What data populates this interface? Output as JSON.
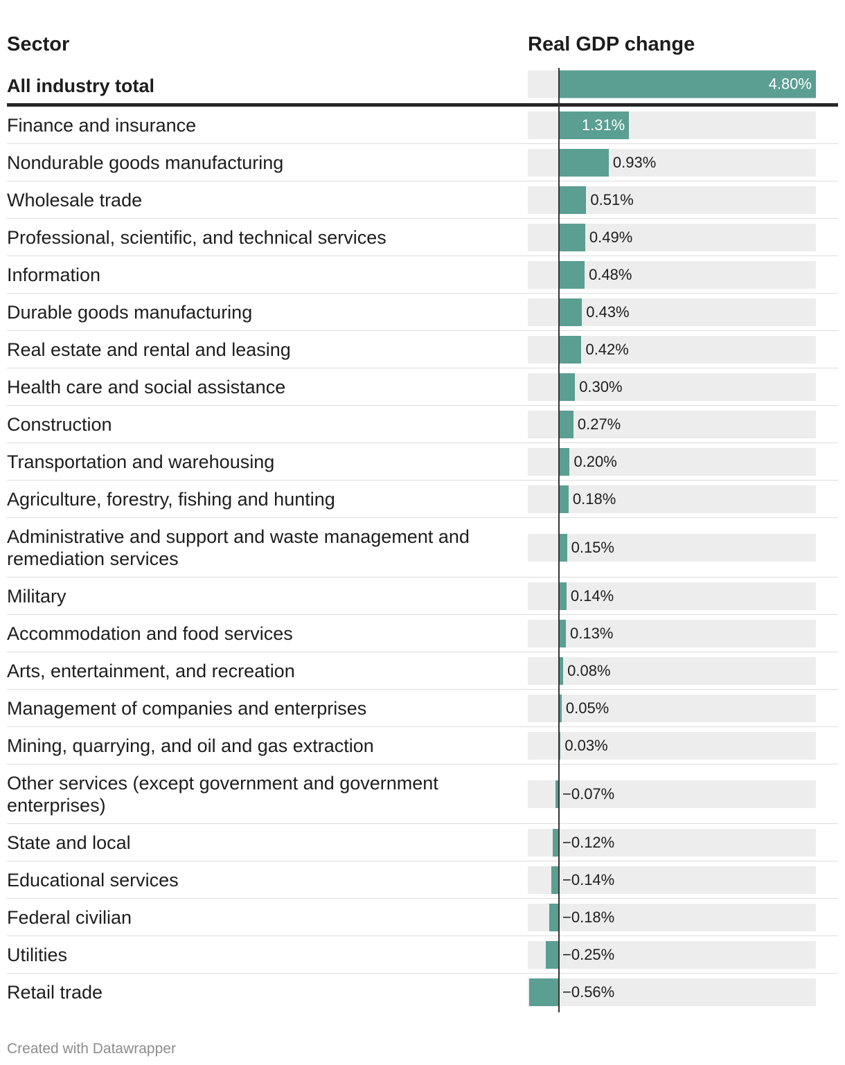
{
  "header": {
    "sector_label": "Sector",
    "value_label": "Real GDP change"
  },
  "footer": "Created with Datawrapper",
  "colors": {
    "bar": "#5b9e92",
    "track": "#ededed",
    "axis": "#333333"
  },
  "chart_data": {
    "type": "bar",
    "title": "",
    "xlabel": "Real GDP change",
    "ylabel": "Sector",
    "xlim": [
      -0.6,
      4.9
    ],
    "categories": [
      "All industry total",
      "Finance and insurance",
      "Nondurable goods manufacturing",
      "Wholesale trade",
      "Professional, scientific, and technical services",
      "Information",
      "Durable goods manufacturing",
      "Real estate and rental and leasing",
      "Health care and social assistance",
      "Construction",
      "Transportation and warehousing",
      "Agriculture, forestry, fishing and hunting",
      "Administrative and support and waste management and remediation services",
      "Military",
      "Accommodation and food services",
      "Arts, entertainment, and recreation",
      "Management of companies and enterprises",
      "Mining, quarrying, and oil and gas extraction",
      "Other services (except government and government enterprises)",
      "State and local",
      "Educational services",
      "Federal civilian",
      "Utilities",
      "Retail trade"
    ],
    "values": [
      4.8,
      1.31,
      0.93,
      0.51,
      0.49,
      0.48,
      0.43,
      0.42,
      0.3,
      0.27,
      0.2,
      0.18,
      0.15,
      0.14,
      0.13,
      0.08,
      0.05,
      0.03,
      -0.07,
      -0.12,
      -0.14,
      -0.18,
      -0.25,
      -0.56
    ],
    "labels": [
      "4.80%",
      "1.31%",
      "0.93%",
      "0.51%",
      "0.49%",
      "0.48%",
      "0.43%",
      "0.42%",
      "0.30%",
      "0.27%",
      "0.20%",
      "0.18%",
      "0.15%",
      "0.14%",
      "0.13%",
      "0.08%",
      "0.05%",
      "0.03%",
      "−0.07%",
      "−0.12%",
      "−0.14%",
      "−0.18%",
      "−0.25%",
      "−0.56%"
    ]
  }
}
